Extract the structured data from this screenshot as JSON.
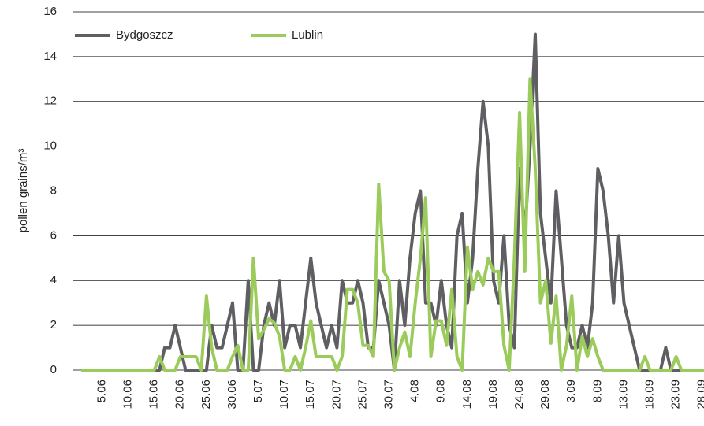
{
  "chart_data": {
    "type": "line",
    "y_label": "pollen grains/m³",
    "categories": [
      null,
      null,
      null,
      null,
      "5.06",
      null,
      null,
      null,
      null,
      "10.06",
      null,
      null,
      null,
      null,
      "15.06",
      null,
      null,
      null,
      null,
      "20.06",
      null,
      null,
      null,
      null,
      "25.06",
      null,
      null,
      null,
      null,
      "30.06",
      null,
      null,
      null,
      null,
      "5.07",
      null,
      null,
      null,
      null,
      "10.07",
      null,
      null,
      null,
      null,
      "15.07",
      null,
      null,
      null,
      null,
      "20.07",
      null,
      null,
      null,
      null,
      "25.07",
      null,
      null,
      null,
      null,
      "30.07",
      null,
      null,
      null,
      null,
      "4.08",
      null,
      null,
      null,
      null,
      "9.08",
      null,
      null,
      null,
      null,
      "14.08",
      null,
      null,
      null,
      null,
      "19.08",
      null,
      null,
      null,
      null,
      "24.08",
      null,
      null,
      null,
      null,
      "29.08",
      null,
      null,
      null,
      null,
      "3.09",
      null,
      null,
      null,
      null,
      "8.09",
      null,
      null,
      null,
      null,
      "13.09",
      null,
      null,
      null,
      null,
      "18.09",
      null,
      null,
      null,
      null,
      "23.09",
      null,
      null,
      null,
      null,
      "28.09",
      null,
      null
    ],
    "series": [
      {
        "name": "Bydgoszcz",
        "color": "#5f5f63",
        "values": [
          0,
          0,
          0,
          0,
          0,
          0,
          0,
          0,
          0,
          0,
          0,
          0,
          0,
          0,
          0,
          0,
          1,
          1,
          2,
          1,
          0,
          0,
          0,
          0,
          0,
          2,
          1,
          1,
          2,
          3,
          0,
          0,
          4,
          0,
          0,
          2,
          3,
          2,
          4,
          1,
          2,
          2,
          1,
          3,
          5,
          3,
          2,
          1,
          2,
          1,
          4,
          3,
          3,
          4,
          3,
          1,
          1,
          4,
          3,
          2,
          0,
          4,
          2,
          5,
          7,
          8,
          3,
          3,
          2,
          4,
          2,
          1,
          6,
          7,
          3,
          5,
          9,
          12,
          10,
          4,
          3,
          6,
          2,
          1,
          9,
          6,
          10,
          15,
          7,
          5,
          3,
          8,
          5,
          2,
          1,
          1,
          2,
          1,
          3,
          9,
          8,
          6,
          3,
          6,
          3,
          2,
          1,
          0,
          0,
          0,
          0,
          0,
          1,
          0,
          0,
          0,
          0,
          0,
          0,
          0,
          0,
          0
        ]
      },
      {
        "name": "Lublin",
        "color": "#9bcb5a",
        "values": [
          0,
          0,
          0,
          0,
          0,
          0,
          0,
          0,
          0,
          0,
          0,
          0,
          0,
          0,
          0,
          0.6,
          0,
          0,
          0,
          0.6,
          0.6,
          0.6,
          0.6,
          0,
          3.3,
          1,
          0,
          0,
          0,
          0.6,
          1.1,
          0,
          0,
          5,
          1.4,
          1.8,
          2.3,
          2.1,
          1.5,
          0,
          0,
          0.6,
          0,
          1,
          2.2,
          0.6,
          0.6,
          0.6,
          0.6,
          0,
          0.6,
          3.6,
          3.6,
          3,
          1.1,
          1.1,
          0.6,
          8.3,
          4.4,
          4,
          0,
          1,
          1.7,
          0.6,
          3,
          5,
          7.7,
          0.6,
          2.2,
          2.2,
          1.1,
          3.6,
          0.6,
          0,
          5.5,
          3.6,
          4.4,
          3.8,
          5,
          4.4,
          4.4,
          1.1,
          0,
          5,
          11.5,
          4.4,
          13,
          9,
          3,
          4,
          1.2,
          3.3,
          0,
          1.1,
          3.3,
          0,
          1.5,
          0.6,
          1.4,
          0.6,
          0,
          0,
          0,
          0,
          0,
          0,
          0,
          0,
          0.6,
          0,
          0,
          0,
          0,
          0,
          0.6,
          0,
          0,
          0,
          0,
          0,
          0,
          0
        ]
      }
    ],
    "ylim": [
      0,
      16
    ],
    "yticks": [
      0,
      2,
      4,
      6,
      8,
      10,
      12,
      14,
      16
    ],
    "grid": true,
    "legend": "top-left"
  }
}
